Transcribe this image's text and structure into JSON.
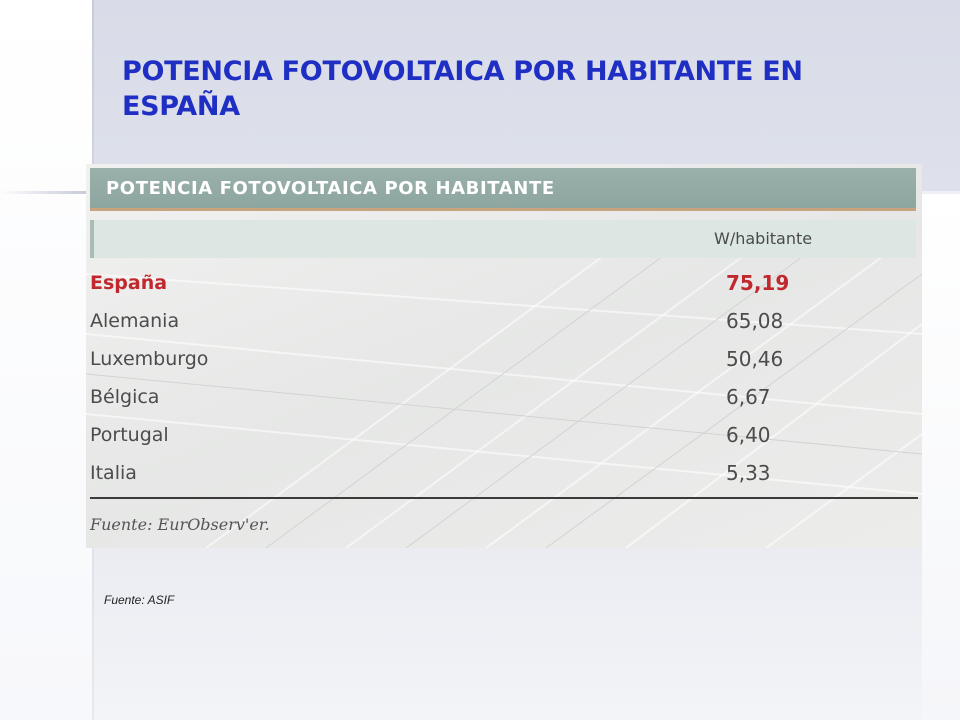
{
  "slide": {
    "title": "POTENCIA FOTOVOLTAICA POR HABITANTE EN ESPAÑA",
    "source": "Fuente: ASIF",
    "title_color": "#1f2fc4"
  },
  "table": {
    "title": "POTENCIA FOTOVOLTAICA POR HABITANTE",
    "unit_header": "W/habitante",
    "source": "Fuente: EurObserv'er.",
    "header_color": "#8ea6a0",
    "highlight_color": "#c0282d",
    "rows": [
      {
        "country": "España",
        "value": "75,19",
        "highlight": true
      },
      {
        "country": "Alemania",
        "value": "65,08"
      },
      {
        "country": "Luxemburgo",
        "value": "50,46"
      },
      {
        "country": "Bélgica",
        "value": "6,67"
      },
      {
        "country": "Portugal",
        "value": "6,40"
      },
      {
        "country": "Italia",
        "value": "5,33"
      }
    ]
  }
}
